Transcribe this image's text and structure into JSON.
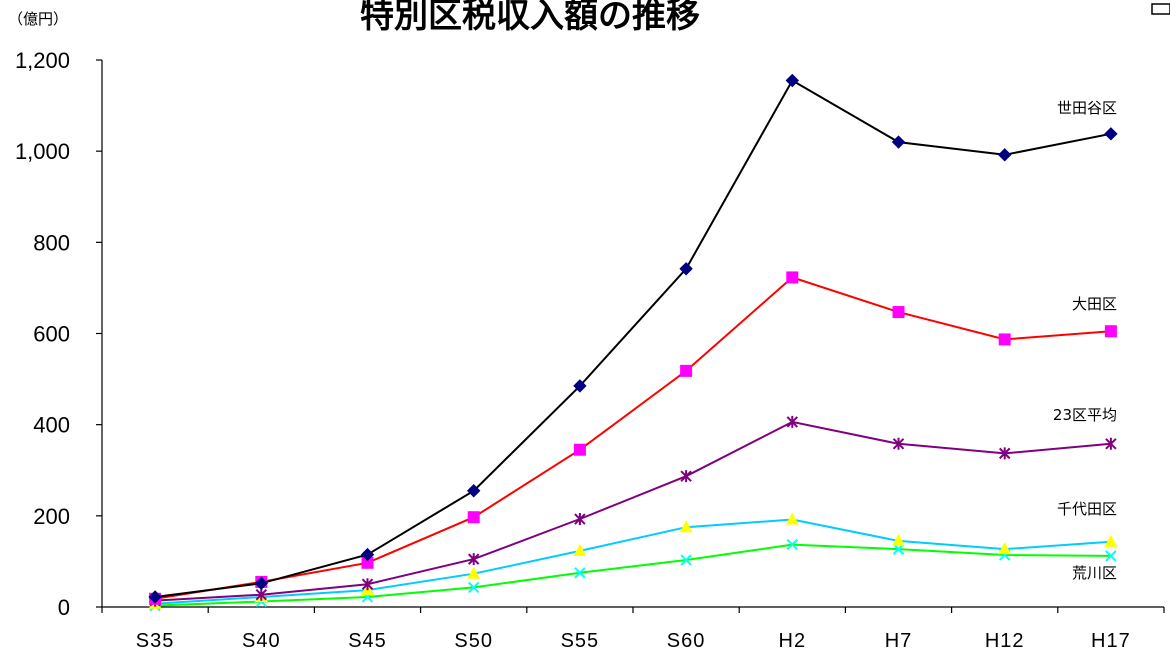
{
  "chart_data": {
    "type": "line",
    "title": "特別区税収入額の推移",
    "unit_label": "（億円）",
    "categories": [
      "S35",
      "S40",
      "S45",
      "S50",
      "S55",
      "S60",
      "H2",
      "H7",
      "H12",
      "H17"
    ],
    "ylim": [
      0,
      1200
    ],
    "yticks": [
      "0",
      "200",
      "400",
      "600",
      "800",
      "1,000",
      "1,200"
    ],
    "ytick_values": [
      0,
      200,
      400,
      600,
      800,
      1000,
      1200
    ],
    "grid": false,
    "legend": "none",
    "series": [
      {
        "name": "世田谷区",
        "values": [
          22,
          52,
          115,
          255,
          485,
          742,
          1155,
          1020,
          992,
          1038
        ],
        "color": "#000000",
        "marker_color": "#000080",
        "marker": "diamond"
      },
      {
        "name": "大田区",
        "values": [
          18,
          55,
          97,
          197,
          345,
          518,
          723,
          647,
          587,
          605
        ],
        "color": "#ff0000",
        "marker_color": "#ff00ff",
        "marker": "square"
      },
      {
        "name": "23区平均",
        "values": [
          14,
          27,
          50,
          105,
          193,
          287,
          406,
          358,
          337,
          358
        ],
        "color": "#800080",
        "marker_color": "#800080",
        "marker": "star"
      },
      {
        "name": "千代田区",
        "values": [
          7,
          22,
          37,
          73,
          123,
          175,
          192,
          145,
          127,
          143
        ],
        "color": "#00ccff",
        "marker_color": "#ffff00",
        "marker": "triangle"
      },
      {
        "name": "荒川区",
        "values": [
          3,
          12,
          22,
          43,
          75,
          103,
          137,
          127,
          114,
          112
        ],
        "color": "#00ff00",
        "marker_color": "#00ffff",
        "marker": "x"
      }
    ]
  }
}
